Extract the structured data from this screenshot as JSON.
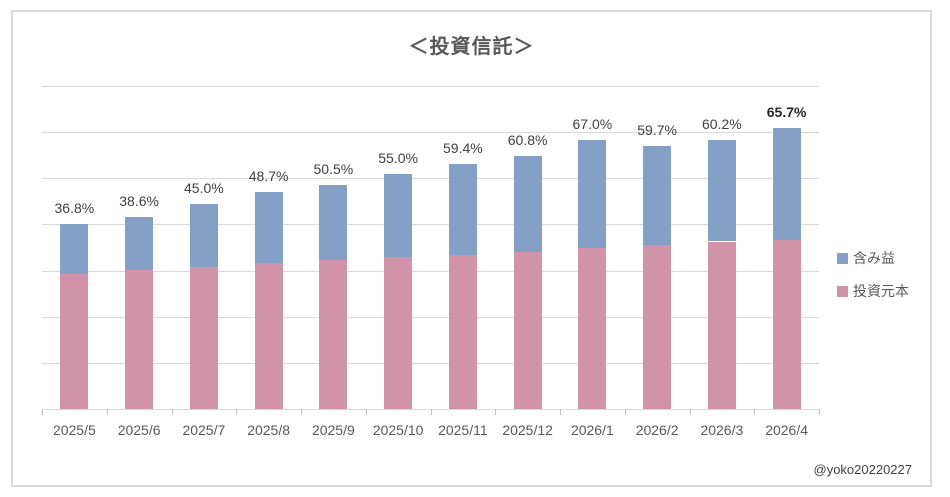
{
  "title": "＜投資信託＞",
  "attribution": "@yoko20220227",
  "colors": {
    "gain": "#85A0C6",
    "principal": "#D093A7",
    "gridline": "#D9D9D9",
    "frame_border": "#D9D9D9",
    "data_label_text": "#404040",
    "axis_text": "#595959",
    "title_text": "#595959"
  },
  "legend": {
    "items": [
      {
        "label": "含み益",
        "color_key": "gain"
      },
      {
        "label": "投資元本",
        "color_key": "principal"
      }
    ]
  },
  "chart_data": {
    "type": "bar",
    "stacked": true,
    "title": "＜投資信託＞",
    "categories": [
      "2025/5",
      "2025/6",
      "2025/7",
      "2025/8",
      "2025/9",
      "2025/10",
      "2025/11",
      "2025/12",
      "2026/1",
      "2026/2",
      "2026/3",
      "2026/4"
    ],
    "series": [
      {
        "name": "投資元本",
        "color_key": "principal",
        "values": [
          2.93,
          3.01,
          3.07,
          3.16,
          3.22,
          3.29,
          3.34,
          3.41,
          3.49,
          3.56,
          3.63,
          3.67
        ]
      },
      {
        "name": "含み益",
        "color_key": "gain",
        "values": [
          1.08,
          1.16,
          1.38,
          1.54,
          1.63,
          1.81,
          1.98,
          2.07,
          2.34,
          2.13,
          2.19,
          2.41
        ]
      }
    ],
    "value_units": "relative (y-axis shown without labels; 7 gridline intervals, ylim 0-7)",
    "total_labels": [
      "36.8%",
      "38.6%",
      "45.0%",
      "48.7%",
      "50.5%",
      "55.0%",
      "59.4%",
      "60.8%",
      "67.0%",
      "59.7%",
      "60.2%",
      "65.7%"
    ],
    "gain_rate_percent": [
      36.8,
      38.6,
      45.0,
      48.7,
      50.5,
      55.0,
      59.4,
      60.8,
      67.0,
      59.7,
      60.2,
      65.7
    ],
    "bold_label_index": 11,
    "ylim": [
      0,
      7
    ],
    "gridline_intervals": 7,
    "y_axis_labels_visible": false,
    "legend_position": "right",
    "xlabel": "",
    "ylabel": ""
  }
}
